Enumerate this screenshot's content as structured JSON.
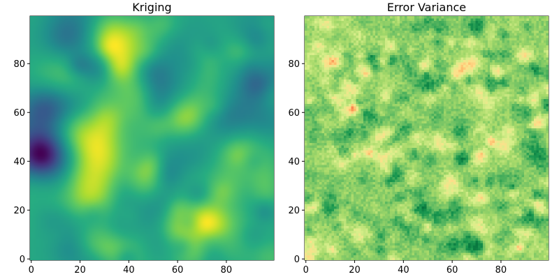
{
  "chart_data": [
    {
      "type": "heatmap",
      "title": "Kriging",
      "colormap": "viridis",
      "grid_size": 100,
      "xlim": [
        0,
        99
      ],
      "ylim": [
        0,
        99
      ],
      "xticks": [
        0,
        20,
        40,
        60,
        80
      ],
      "yticks": [
        0,
        20,
        40,
        60,
        80
      ],
      "legend": "none",
      "grid": false
    },
    {
      "type": "heatmap",
      "title": "Error Variance",
      "colormap": "RdYlGn_r",
      "grid_size": 100,
      "xlim": [
        0,
        99
      ],
      "ylim": [
        0,
        99
      ],
      "xticks": [
        0,
        20,
        40,
        60,
        80
      ],
      "yticks": [
        0,
        20,
        40,
        60,
        80
      ],
      "legend": "none",
      "grid": false
    }
  ]
}
